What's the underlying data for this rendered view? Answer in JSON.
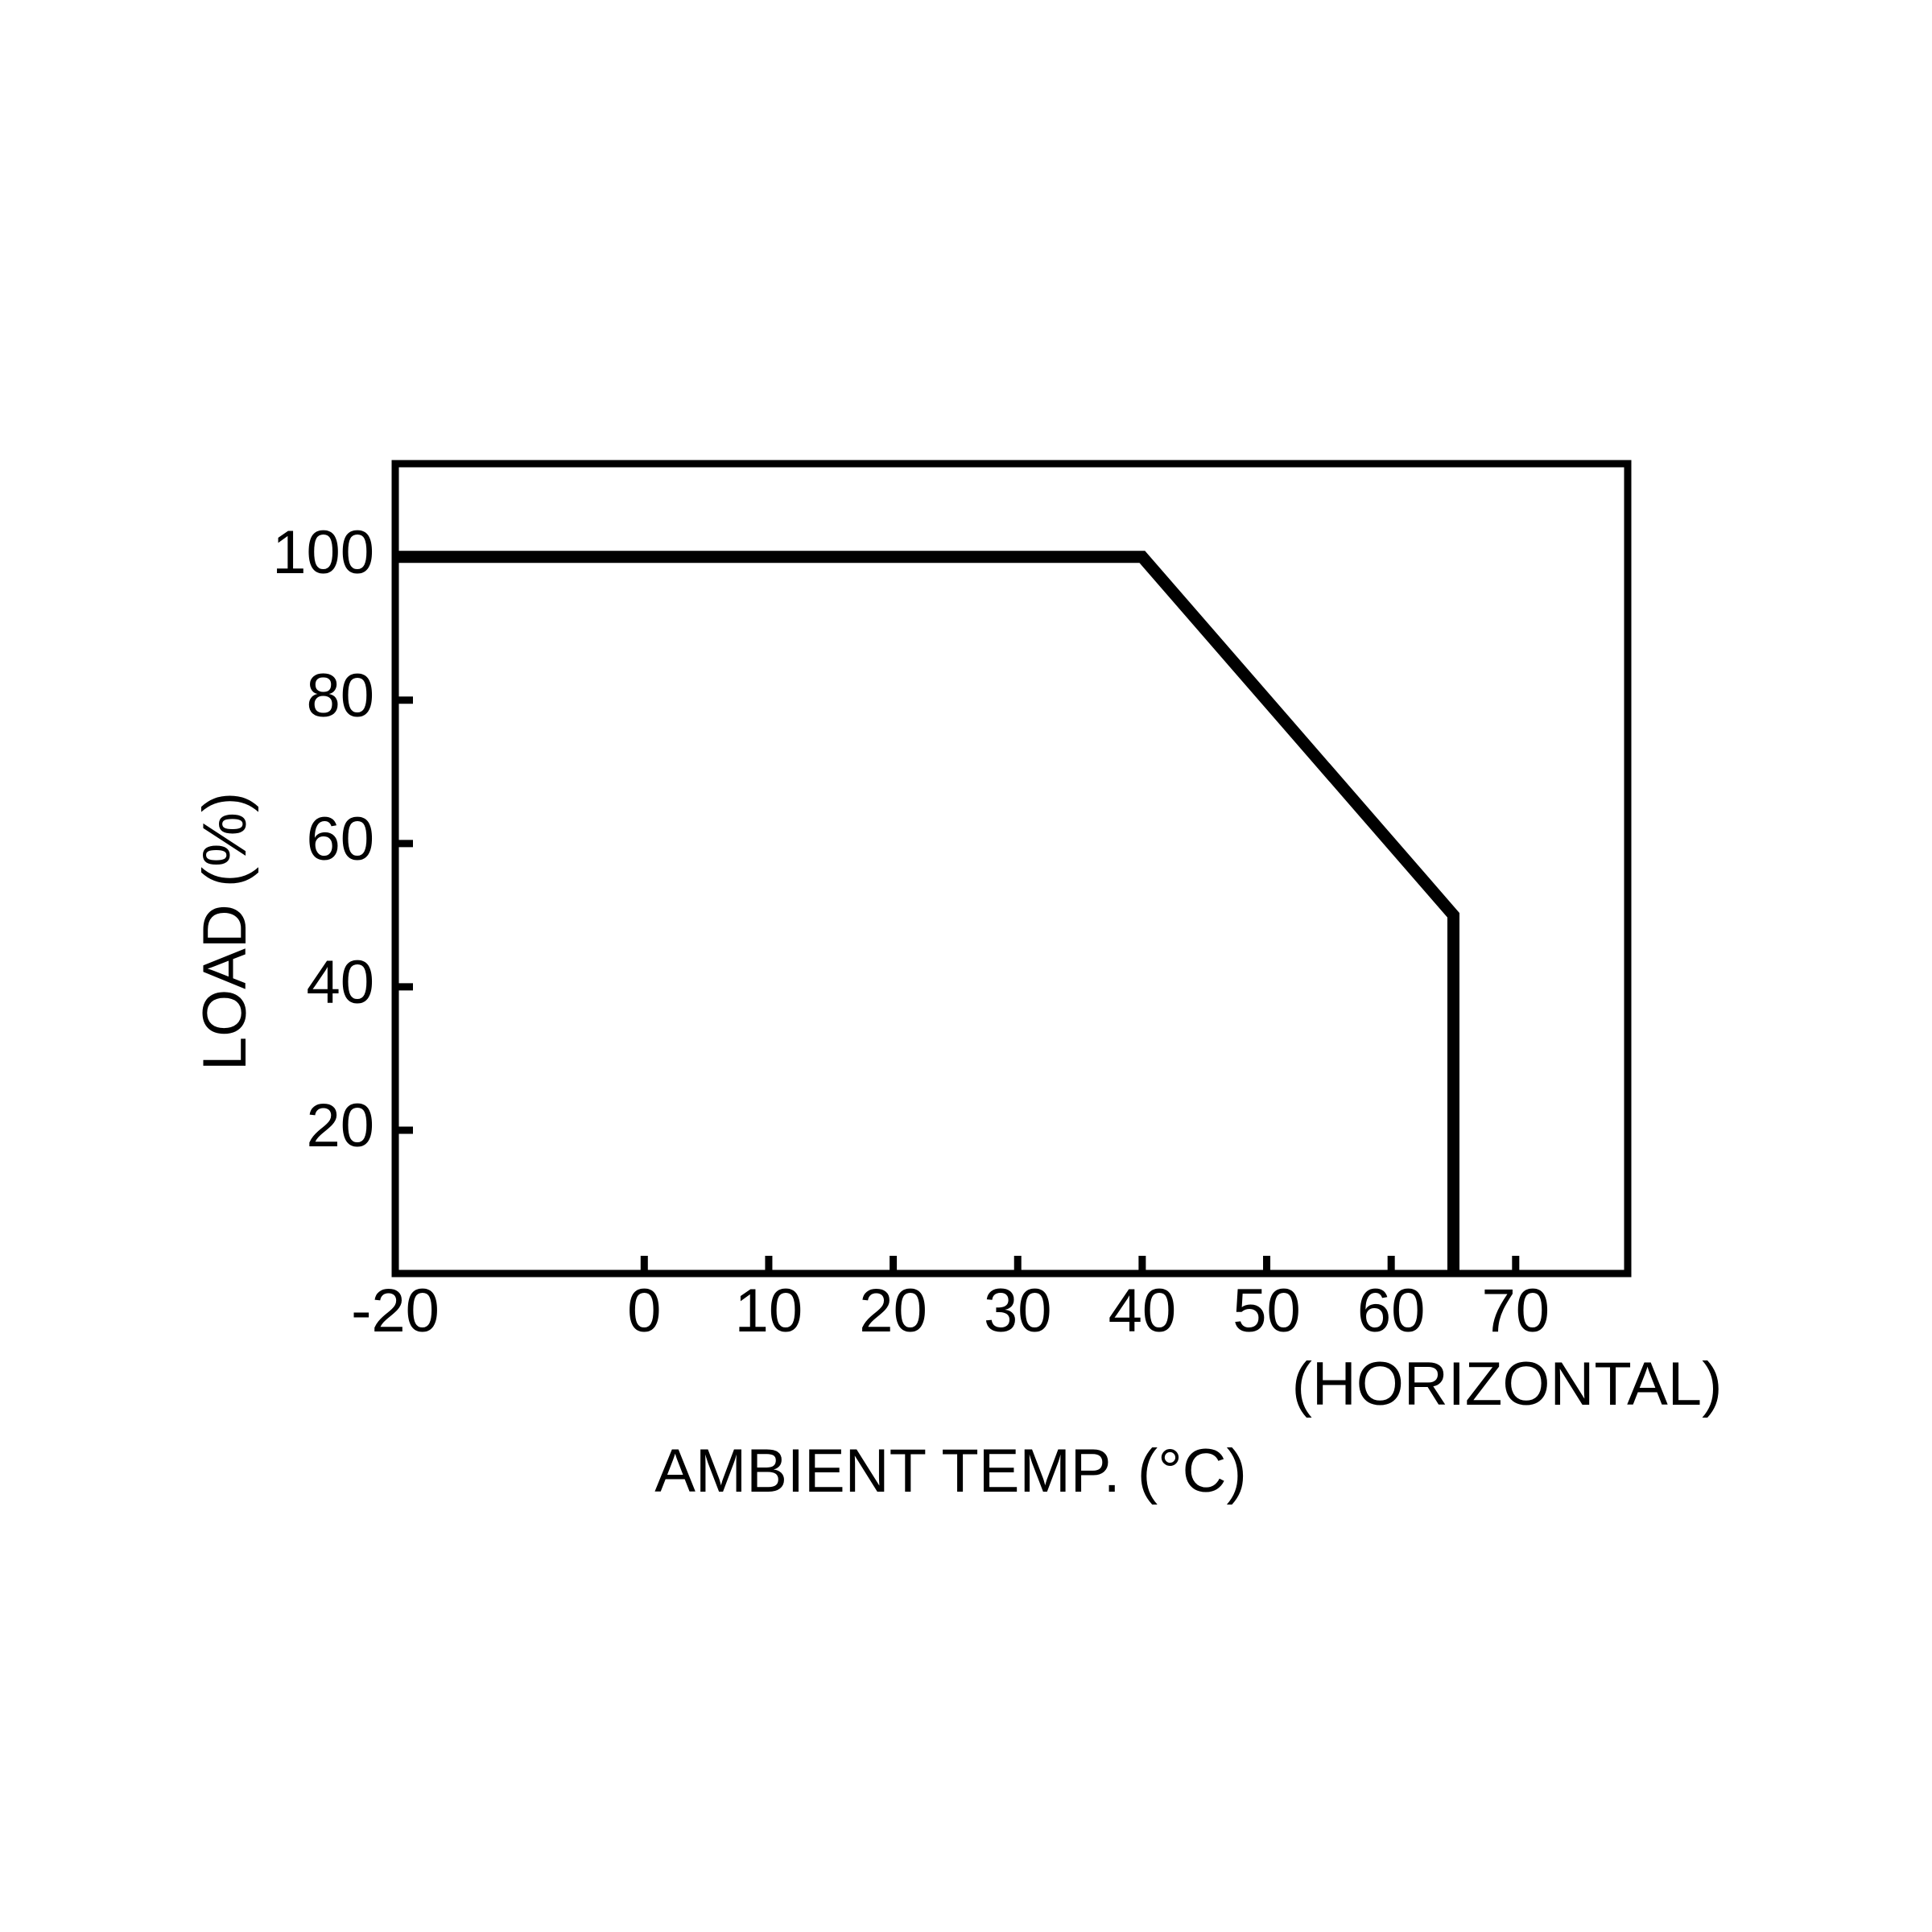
{
  "chart_data": {
    "type": "line",
    "xlabel": "AMBIENT TEMP. (°C)",
    "ylabel": "LOAD (%)",
    "annotation": "(HORIZONTAL)",
    "x": [
      -20,
      40,
      65,
      65
    ],
    "series": [
      {
        "color": "#000000",
        "values": [
          100,
          100,
          50,
          0
        ]
      }
    ],
    "xlim": [
      -20,
      79
    ],
    "ylim": [
      0,
      113
    ],
    "xticks": [
      -20,
      0,
      10,
      20,
      30,
      40,
      50,
      60,
      70
    ],
    "yticks": [
      20,
      40,
      60,
      80,
      100
    ],
    "grid": false
  }
}
